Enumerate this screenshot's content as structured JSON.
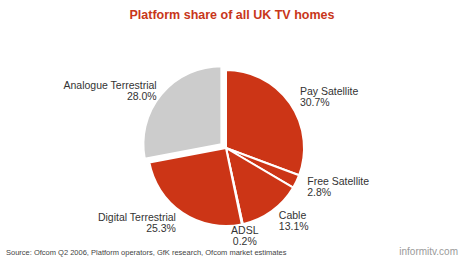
{
  "chart_data": {
    "type": "pie",
    "title": "Platform share of all UK TV homes",
    "categories": [
      "Pay Satellite",
      "Free Satellite",
      "Cable",
      "ADSL",
      "Digital Terrestrial",
      "Analogue Terrestrial"
    ],
    "values": [
      30.7,
      2.8,
      13.1,
      0.2,
      25.3,
      28.0
    ],
    "value_labels": [
      "30.7%",
      "2.8%",
      "13.1%",
      "0.2%",
      "25.3%",
      "28.0%"
    ],
    "colors": [
      "#cc3516",
      "#cc3516",
      "#cc3516",
      "#cc3516",
      "#cc3516",
      "#cccccc"
    ],
    "data_labels": true,
    "source": "Source: Ofcom Q2 2006, Platform operators, GfK research, Ofcom market estimates",
    "annotations": [
      "informitv.com"
    ]
  }
}
